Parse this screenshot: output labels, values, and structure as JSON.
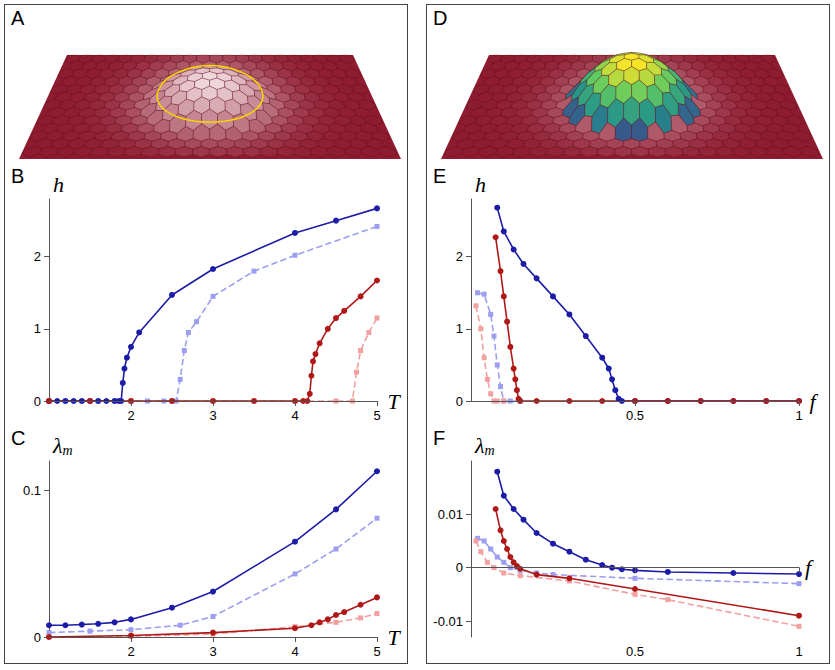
{
  "illustrations": [
    {
      "panel": "A"
    },
    {
      "panel": "D"
    }
  ],
  "chart_data": [
    {
      "panel": "B",
      "type": "line",
      "xlabel": "T",
      "ylabel": "h",
      "xlim": [
        1,
        5
      ],
      "xticks": [
        2,
        3,
        4,
        5
      ],
      "ylim": [
        0,
        2.8
      ],
      "yticks": [
        0,
        1,
        2
      ],
      "grid": false,
      "series": [
        {
          "color": "#1c1ca8",
          "marker": "circle",
          "line_style": "solid",
          "x": [
            1,
            1.1,
            1.2,
            1.3,
            1.4,
            1.5,
            1.6,
            1.7,
            1.8,
            1.85,
            1.88,
            1.9,
            1.92,
            1.95,
            2.0,
            2.1,
            2.5,
            3.0,
            4.0,
            4.5,
            5.0
          ],
          "values": [
            0,
            0,
            0,
            0,
            0,
            0,
            0,
            0,
            0,
            0,
            0,
            0.25,
            0.45,
            0.6,
            0.75,
            0.95,
            1.47,
            1.83,
            2.33,
            2.5,
            2.67
          ]
        },
        {
          "color": "#9c9ef0",
          "marker": "square",
          "line_style": "dashed",
          "x": [
            1,
            1.2,
            1.4,
            1.6,
            1.8,
            2.0,
            2.2,
            2.4,
            2.5,
            2.55,
            2.6,
            2.65,
            2.7,
            2.8,
            3.0,
            3.5,
            4.0,
            5.0
          ],
          "values": [
            0,
            0,
            0,
            0,
            0,
            0,
            0,
            0,
            0,
            0,
            0.3,
            0.7,
            0.95,
            1.1,
            1.45,
            1.8,
            2.02,
            2.42
          ]
        },
        {
          "color": "#b01818",
          "marker": "circle",
          "line_style": "solid",
          "x": [
            1,
            1.5,
            2,
            2.5,
            3,
            3.5,
            4.0,
            4.1,
            4.15,
            4.18,
            4.2,
            4.22,
            4.25,
            4.3,
            4.4,
            4.5,
            4.6,
            4.8,
            5.0
          ],
          "values": [
            0,
            0,
            0,
            0,
            0,
            0,
            0,
            0,
            0,
            0.1,
            0.35,
            0.55,
            0.65,
            0.8,
            1.0,
            1.15,
            1.25,
            1.45,
            1.67
          ]
        },
        {
          "color": "#f2a0a0",
          "marker": "square",
          "line_style": "dashed",
          "x": [
            1,
            1.5,
            2,
            2.5,
            3,
            3.5,
            4,
            4.5,
            4.7,
            4.75,
            4.8,
            4.9,
            5.0
          ],
          "values": [
            0,
            0,
            0,
            0,
            0,
            0,
            0,
            0,
            0,
            0.4,
            0.7,
            0.95,
            1.15
          ]
        }
      ]
    },
    {
      "panel": "C",
      "type": "line",
      "xlabel": "T",
      "ylabel": "λm",
      "xlim": [
        1,
        5
      ],
      "xticks": [
        2,
        3,
        4,
        5
      ],
      "ylim": [
        0,
        0.12
      ],
      "yticks": [
        0,
        0.1
      ],
      "grid": false,
      "series": [
        {
          "color": "#1c1ca8",
          "marker": "circle",
          "line_style": "solid",
          "x": [
            1,
            1.2,
            1.4,
            1.6,
            1.8,
            2.0,
            2.5,
            3.0,
            4.0,
            4.5,
            5.0
          ],
          "values": [
            0.008,
            0.008,
            0.0085,
            0.009,
            0.01,
            0.012,
            0.02,
            0.031,
            0.065,
            0.087,
            0.113
          ]
        },
        {
          "color": "#9c9ef0",
          "marker": "square",
          "line_style": "dashed",
          "x": [
            1,
            1.5,
            2.0,
            2.6,
            3.0,
            4.0,
            4.5,
            5.0
          ],
          "values": [
            0.003,
            0.004,
            0.005,
            0.008,
            0.014,
            0.043,
            0.06,
            0.081
          ]
        },
        {
          "color": "#b01818",
          "marker": "circle",
          "line_style": "solid",
          "x": [
            1,
            2,
            3,
            4,
            4.2,
            4.3,
            4.4,
            4.5,
            4.6,
            4.8,
            5.0
          ],
          "values": [
            0,
            0.001,
            0.003,
            0.006,
            0.008,
            0.01,
            0.012,
            0.015,
            0.017,
            0.022,
            0.027
          ]
        },
        {
          "color": "#f2a0a0",
          "marker": "square",
          "line_style": "dashed",
          "x": [
            1,
            2,
            3,
            4,
            4.5,
            4.8,
            5.0
          ],
          "values": [
            0,
            0.0005,
            0.002,
            0.007,
            0.01,
            0.013,
            0.016
          ]
        }
      ]
    },
    {
      "panel": "E",
      "type": "line",
      "xlabel": "f",
      "ylabel": "h",
      "xlim": [
        0,
        1
      ],
      "xticks": [
        0.5,
        1
      ],
      "ylim": [
        0,
        2.8
      ],
      "yticks": [
        0,
        1,
        2
      ],
      "grid": false,
      "series": [
        {
          "color": "#1c1ca8",
          "marker": "circle",
          "line_style": "solid",
          "x": [
            0.08,
            0.1,
            0.13,
            0.16,
            0.2,
            0.25,
            0.3,
            0.35,
            0.4,
            0.42,
            0.43,
            0.44,
            0.45,
            0.46,
            0.5,
            0.6,
            0.7,
            0.8,
            0.9,
            1.0
          ],
          "values": [
            2.68,
            2.35,
            2.1,
            1.9,
            1.7,
            1.45,
            1.2,
            0.9,
            0.6,
            0.45,
            0.3,
            0.15,
            0.03,
            0,
            0,
            0,
            0,
            0,
            0,
            0
          ]
        },
        {
          "color": "#9c9ef0",
          "marker": "square",
          "line_style": "dashed",
          "x": [
            0.02,
            0.04,
            0.06,
            0.07,
            0.08,
            0.09,
            0.1,
            0.12,
            0.15
          ],
          "values": [
            1.5,
            1.48,
            1.2,
            0.9,
            0.5,
            0.2,
            0,
            0,
            0
          ]
        },
        {
          "color": "#b01818",
          "marker": "circle",
          "line_style": "solid",
          "x": [
            0.075,
            0.09,
            0.1,
            0.11,
            0.12,
            0.13,
            0.135,
            0.14,
            0.145,
            0.15,
            0.2,
            0.3,
            0.4,
            0.5,
            0.6,
            0.7,
            0.8,
            0.9,
            1.0
          ],
          "values": [
            2.27,
            1.8,
            1.45,
            1.1,
            0.75,
            0.45,
            0.3,
            0.15,
            0.03,
            0,
            0,
            0,
            0,
            0,
            0,
            0,
            0,
            0,
            0
          ]
        },
        {
          "color": "#f2a0a0",
          "marker": "square",
          "line_style": "dashed",
          "x": [
            0.015,
            0.03,
            0.04,
            0.05,
            0.06,
            0.07,
            0.08,
            0.1
          ],
          "values": [
            1.32,
            1.0,
            0.6,
            0.3,
            0.1,
            0,
            0,
            0
          ]
        }
      ]
    },
    {
      "panel": "F",
      "type": "line",
      "xlabel": "f",
      "ylabel": "λm",
      "xlim": [
        0,
        1
      ],
      "xticks": [
        0.5,
        1
      ],
      "ylim": [
        -0.013,
        0.02
      ],
      "yticks": [
        -0.01,
        0,
        0.01
      ],
      "grid": false,
      "series": [
        {
          "color": "#1c1ca8",
          "marker": "circle",
          "line_style": "solid",
          "x": [
            0.08,
            0.1,
            0.13,
            0.16,
            0.2,
            0.25,
            0.3,
            0.35,
            0.4,
            0.43,
            0.46,
            0.5,
            0.6,
            0.8,
            1.0
          ],
          "values": [
            0.018,
            0.0135,
            0.011,
            0.009,
            0.0065,
            0.0045,
            0.003,
            0.0015,
            0.0005,
            0,
            -0.0003,
            -0.0005,
            -0.0008,
            -0.001,
            -0.0012
          ]
        },
        {
          "color": "#9c9ef0",
          "marker": "square",
          "line_style": "dashed",
          "x": [
            0.02,
            0.04,
            0.06,
            0.08,
            0.1,
            0.12,
            0.15,
            0.2,
            0.25,
            0.5,
            1.0
          ],
          "values": [
            0.0055,
            0.005,
            0.0035,
            0.002,
            0.001,
            0,
            -0.0005,
            -0.001,
            -0.0013,
            -0.002,
            -0.003
          ]
        },
        {
          "color": "#b01818",
          "marker": "circle",
          "line_style": "solid",
          "x": [
            0.075,
            0.09,
            0.1,
            0.11,
            0.12,
            0.13,
            0.14,
            0.15,
            0.2,
            0.3,
            0.5,
            1.0
          ],
          "values": [
            0.011,
            0.007,
            0.005,
            0.0035,
            0.002,
            0.001,
            0.0003,
            -0.0002,
            -0.0013,
            -0.002,
            -0.004,
            -0.009
          ]
        },
        {
          "color": "#f2a0a0",
          "marker": "square",
          "line_style": "dashed",
          "x": [
            0.015,
            0.03,
            0.05,
            0.07,
            0.1,
            0.15,
            0.3,
            0.5,
            0.6,
            1.0
          ],
          "values": [
            0.005,
            0.003,
            0.001,
            0,
            -0.001,
            -0.0015,
            -0.0025,
            -0.005,
            -0.006,
            -0.011
          ]
        }
      ]
    }
  ]
}
